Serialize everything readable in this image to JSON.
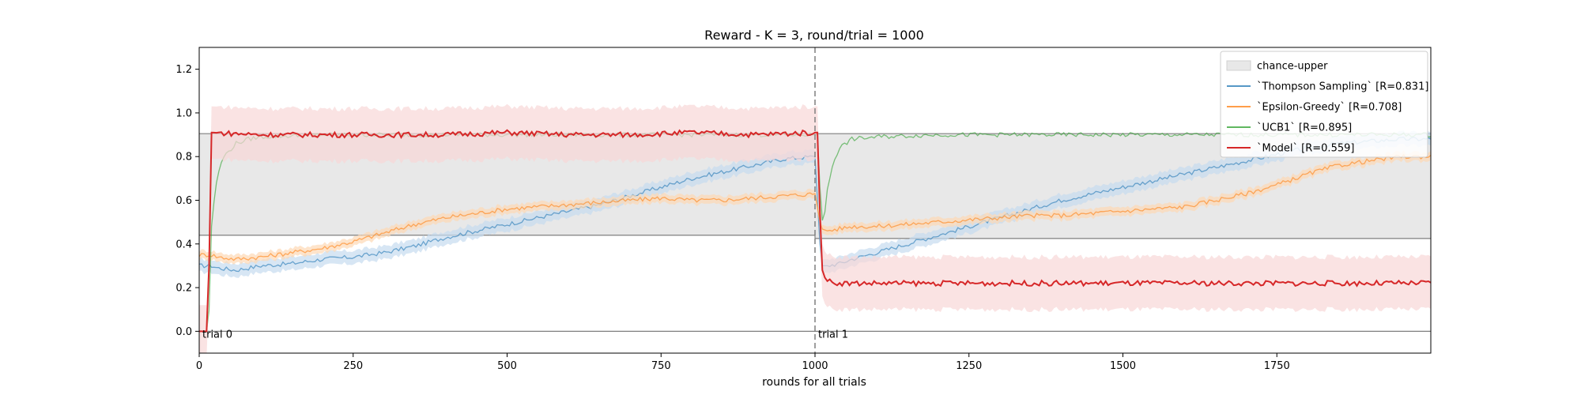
{
  "chart_data": {
    "type": "line",
    "title": "Reward - K = 3, round/trial = 1000",
    "xlabel": "rounds for all trials",
    "ylabel": "",
    "xlim": [
      0,
      2000
    ],
    "ylim": [
      -0.1,
      1.3
    ],
    "xticks": [
      0,
      250,
      500,
      750,
      1000,
      1250,
      1500,
      1750
    ],
    "yticks": [
      0.0,
      0.2,
      0.4,
      0.6,
      0.8,
      1.0,
      1.2
    ],
    "xtick_labels": [
      "0",
      "250",
      "500",
      "750",
      "1000",
      "1250",
      "1500",
      "1750"
    ],
    "ytick_labels": [
      "0.0",
      "0.2",
      "0.4",
      "0.6",
      "0.8",
      "1.0",
      "1.2"
    ],
    "legend_position": "top-right",
    "grid": false,
    "trial_boundary_x": 1000,
    "annotations": [
      {
        "text": "trial 0",
        "x": 0,
        "y": 0.0
      },
      {
        "text": "trial 1",
        "x": 1000,
        "y": 0.0
      }
    ],
    "chance_band": {
      "name": "chance-upper",
      "color": "#e8e8e8",
      "segments": [
        {
          "x": [
            0,
            1000
          ],
          "lower": 0.44,
          "upper": 0.905
        },
        {
          "x": [
            1000,
            2000
          ],
          "lower": 0.425,
          "upper": 0.905
        }
      ]
    },
    "baseline_y": 0.0,
    "series": [
      {
        "name": "`Thompson Sampling` [R=0.831]",
        "color": "#1f77b4",
        "band_color": "#c6dbef",
        "x": [
          0,
          20,
          30,
          60,
          100,
          150,
          200,
          250,
          300,
          350,
          400,
          450,
          500,
          550,
          600,
          650,
          700,
          750,
          800,
          850,
          900,
          950,
          1000,
          1010,
          1020,
          1040,
          1060,
          1100,
          1150,
          1200,
          1250,
          1300,
          1350,
          1400,
          1450,
          1500,
          1550,
          1600,
          1650,
          1700,
          1750,
          1800,
          1850,
          1900,
          1950,
          2000
        ],
        "values": [
          0.3,
          0.3,
          0.29,
          0.28,
          0.3,
          0.31,
          0.33,
          0.34,
          0.36,
          0.39,
          0.43,
          0.46,
          0.49,
          0.52,
          0.55,
          0.58,
          0.62,
          0.66,
          0.7,
          0.73,
          0.76,
          0.79,
          0.8,
          0.3,
          0.3,
          0.31,
          0.33,
          0.36,
          0.4,
          0.44,
          0.48,
          0.52,
          0.56,
          0.6,
          0.63,
          0.66,
          0.69,
          0.72,
          0.75,
          0.78,
          0.81,
          0.84,
          0.86,
          0.87,
          0.88,
          0.88
        ],
        "band": 0.03
      },
      {
        "name": "`Epsilon-Greedy` [R=0.708]",
        "color": "#ff7f0e",
        "band_color": "#fdd9b5",
        "x": [
          0,
          20,
          30,
          60,
          100,
          150,
          200,
          250,
          300,
          350,
          400,
          450,
          500,
          550,
          600,
          650,
          700,
          750,
          800,
          850,
          900,
          950,
          1000,
          1010,
          1020,
          1040,
          1060,
          1100,
          1150,
          1200,
          1250,
          1300,
          1350,
          1400,
          1450,
          1500,
          1550,
          1600,
          1650,
          1700,
          1750,
          1800,
          1850,
          1900,
          1950,
          2000
        ],
        "values": [
          0.35,
          0.35,
          0.34,
          0.33,
          0.34,
          0.36,
          0.38,
          0.41,
          0.45,
          0.49,
          0.52,
          0.54,
          0.56,
          0.57,
          0.58,
          0.59,
          0.6,
          0.61,
          0.6,
          0.6,
          0.61,
          0.62,
          0.63,
          0.47,
          0.46,
          0.47,
          0.48,
          0.48,
          0.49,
          0.5,
          0.51,
          0.52,
          0.53,
          0.53,
          0.54,
          0.55,
          0.56,
          0.57,
          0.6,
          0.63,
          0.67,
          0.72,
          0.76,
          0.78,
          0.8,
          0.8
        ],
        "band": 0.02
      },
      {
        "name": "`UCB1` [R=0.895]",
        "color": "#2ca02c",
        "band_color": "#c7e9c0",
        "x": [
          0,
          15,
          20,
          25,
          30,
          40,
          60,
          80,
          100,
          200,
          300,
          400,
          500,
          600,
          700,
          800,
          900,
          1000,
          1005,
          1010,
          1015,
          1020,
          1030,
          1040,
          1060,
          1100,
          1200,
          1300,
          1400,
          1500,
          1600,
          1700,
          1800,
          1900,
          2000
        ],
        "values": [
          0.0,
          0.0,
          0.48,
          0.62,
          0.72,
          0.8,
          0.86,
          0.88,
          0.89,
          0.9,
          0.9,
          0.9,
          0.9,
          0.9,
          0.9,
          0.9,
          0.9,
          0.9,
          0.9,
          0.5,
          0.52,
          0.65,
          0.78,
          0.84,
          0.88,
          0.89,
          0.9,
          0.9,
          0.9,
          0.9,
          0.9,
          0.9,
          0.9,
          0.9,
          0.9
        ],
        "band": 0.0
      },
      {
        "name": "`Model` [R=0.559]",
        "color": "#d62728",
        "band_color": "#f8d7d7",
        "x": [
          0,
          15,
          18,
          20,
          100,
          200,
          300,
          400,
          500,
          600,
          700,
          800,
          900,
          1000,
          1005,
          1010,
          1015,
          1020,
          1040,
          1100,
          1200,
          1300,
          1400,
          1500,
          1600,
          1700,
          1800,
          1900,
          2000
        ],
        "values": [
          0.0,
          0.0,
          0.9,
          0.91,
          0.9,
          0.9,
          0.9,
          0.9,
          0.91,
          0.9,
          0.9,
          0.91,
          0.9,
          0.91,
          0.91,
          0.3,
          0.25,
          0.23,
          0.22,
          0.22,
          0.22,
          0.22,
          0.22,
          0.22,
          0.22,
          0.22,
          0.22,
          0.22,
          0.22
        ],
        "band": 0.12
      }
    ]
  }
}
